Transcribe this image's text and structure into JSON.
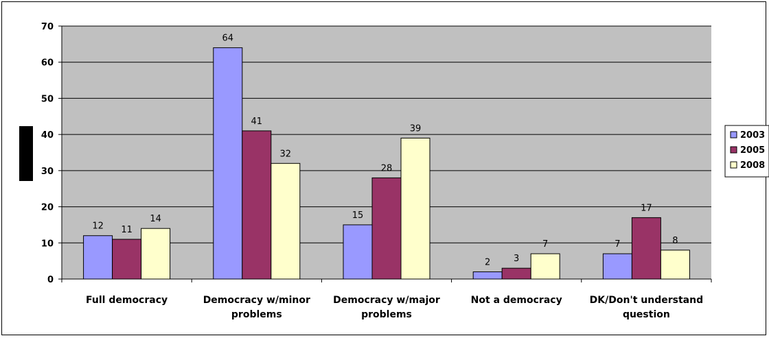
{
  "chart_data": {
    "type": "bar",
    "categories": [
      [
        "Full democracy"
      ],
      [
        "Democracy w/minor",
        "problems"
      ],
      [
        "Democracy w/major",
        "problems"
      ],
      [
        "Not a democracy"
      ],
      [
        "DK/Don't understand",
        "question"
      ]
    ],
    "series": [
      {
        "name": "2003",
        "values": [
          12,
          64,
          15,
          2,
          7
        ],
        "color": "#9999ff"
      },
      {
        "name": "2005",
        "values": [
          11,
          41,
          28,
          3,
          17
        ],
        "color": "#993366"
      },
      {
        "name": "2008",
        "values": [
          14,
          32,
          39,
          7,
          8
        ],
        "color": "#ffffcc"
      }
    ],
    "ylim": [
      0,
      70
    ],
    "yticks": [
      0,
      10,
      20,
      30,
      40,
      50,
      60,
      70
    ],
    "grid": true,
    "plot_background": "#c0c0c0",
    "legend_position": "right",
    "data_labels": true
  }
}
